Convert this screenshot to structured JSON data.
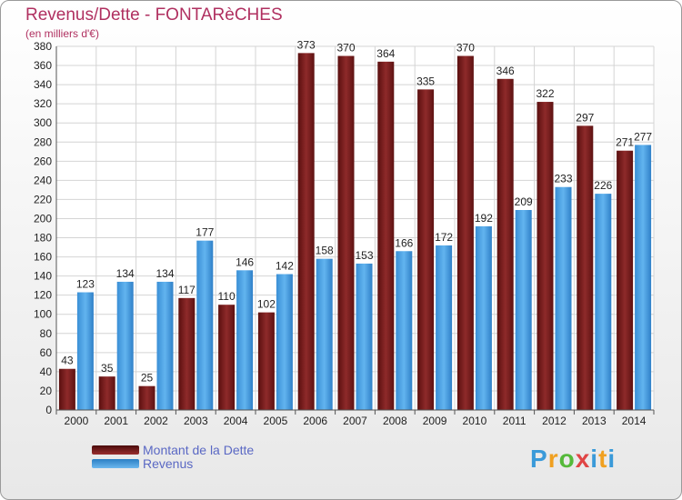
{
  "header": {
    "title": "Revenus/Dette - FONTARèCHES",
    "subtitle": "(en milliers d'€)"
  },
  "chart_data": {
    "type": "bar",
    "title": "Revenus/Dette - FONTARèCHES",
    "ylabel": "(en milliers d'€)",
    "xlabel": "",
    "categories": [
      "2000",
      "2001",
      "2002",
      "2003",
      "2004",
      "2005",
      "2006",
      "2007",
      "2008",
      "2009",
      "2010",
      "2011",
      "2012",
      "2013",
      "2014"
    ],
    "series": [
      {
        "name": "Montant de la Dette",
        "color": "#7a1c1c",
        "values": [
          43,
          35,
          25,
          117,
          110,
          102,
          373,
          370,
          364,
          335,
          370,
          346,
          322,
          297,
          271
        ]
      },
      {
        "name": "Revenus",
        "color": "#4aa3e6",
        "values": [
          123,
          134,
          134,
          177,
          146,
          142,
          158,
          153,
          166,
          172,
          192,
          209,
          233,
          226,
          277
        ]
      }
    ],
    "value_labels": [
      [
        "43",
        "35",
        "25",
        "117",
        "110",
        "102",
        "373",
        "370",
        "364",
        "335",
        "370",
        "346",
        "322",
        "297",
        "271"
      ],
      [
        "123",
        "134",
        "134",
        "177",
        "146",
        "142",
        "158",
        "153",
        "166",
        "172",
        "192",
        "209",
        "233",
        "226",
        "277"
      ]
    ],
    "ylim": [
      0,
      380
    ],
    "yticks": [
      0,
      20,
      40,
      60,
      80,
      100,
      120,
      140,
      160,
      180,
      200,
      220,
      240,
      260,
      280,
      300,
      320,
      340,
      360,
      380
    ],
    "ytick_labels": [
      "0",
      "20",
      "40",
      "60",
      "80",
      "100",
      "120",
      "140",
      "160",
      "180",
      "200",
      "220",
      "240",
      "260",
      "280",
      "300",
      "320",
      "340",
      "360",
      "380"
    ],
    "grid": true,
    "legend_position": "bottom-left"
  },
  "legend": {
    "debt_label": "Montant de la Dette",
    "revenue_label": "Revenus"
  },
  "logo": {
    "letters": [
      "P",
      "r",
      "o",
      "x",
      "i",
      "t",
      "i"
    ]
  }
}
